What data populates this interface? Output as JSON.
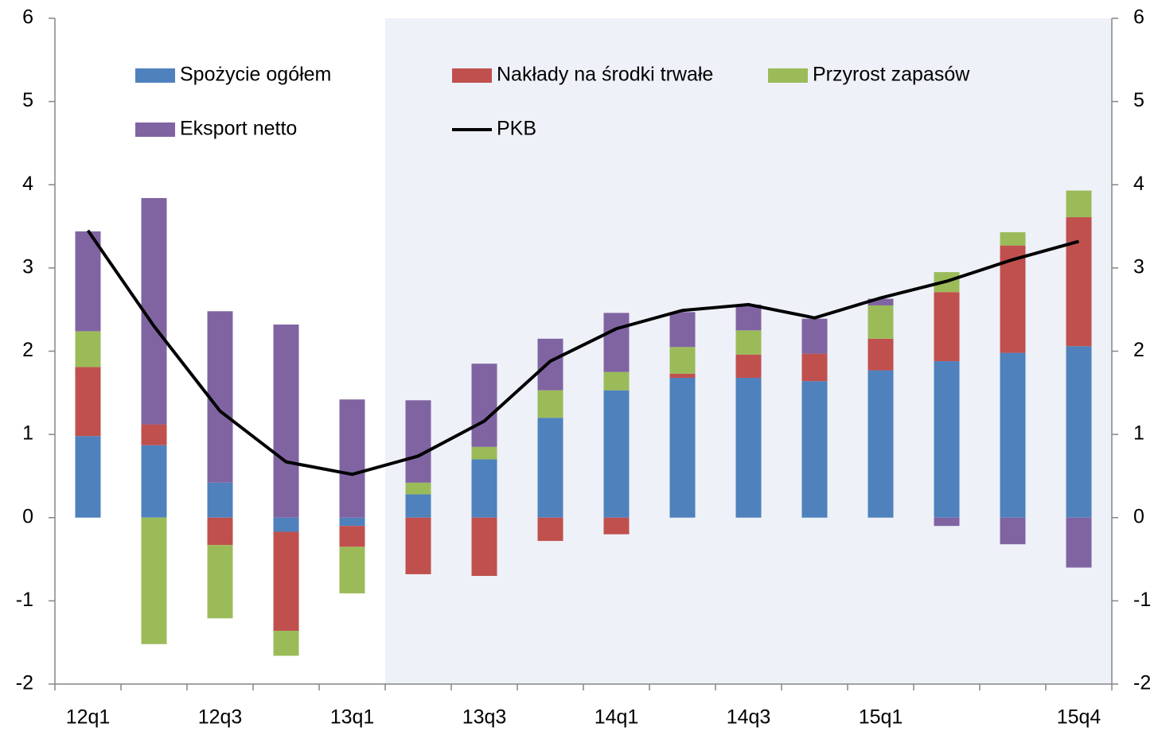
{
  "chart_data": {
    "type": "bar",
    "categories": [
      "12q1",
      null,
      "12q3",
      null,
      "13q1",
      null,
      "13q3",
      null,
      "14q1",
      null,
      "14q3",
      null,
      "15q1",
      null,
      null,
      "15q4"
    ],
    "series": [
      {
        "name": "Spożycie ogółem",
        "color": "#4f81bd",
        "values": [
          0.98,
          0.87,
          0.42,
          -0.17,
          -0.1,
          0.28,
          0.7,
          1.2,
          1.53,
          1.68,
          1.68,
          1.64,
          1.77,
          1.88,
          1.98,
          2.06
        ]
      },
      {
        "name": "Nakłady na środki trwałe",
        "color": "#c0504d",
        "values": [
          0.83,
          0.25,
          -0.33,
          -1.19,
          -0.25,
          -0.68,
          -0.7,
          -0.28,
          -0.2,
          0.05,
          0.28,
          0.33,
          0.38,
          0.83,
          1.29,
          1.55
        ]
      },
      {
        "name": "Przyrost zapasów",
        "color": "#9bbb59",
        "values": [
          0.43,
          -1.52,
          -0.88,
          -0.3,
          -0.56,
          0.14,
          0.15,
          0.33,
          0.22,
          0.32,
          0.29,
          0,
          0.4,
          0.24,
          0.16,
          0.32
        ]
      },
      {
        "name": "Eksport netto",
        "color": "#8064a2",
        "values": [
          1.2,
          2.72,
          2.06,
          2.32,
          1.42,
          0.99,
          1.0,
          0.62,
          0.71,
          0.42,
          0.31,
          0.42,
          0.08,
          -0.1,
          -0.32,
          -0.6
        ]
      },
      {
        "name": "PKB",
        "type": "line",
        "color": "#000000",
        "values": [
          3.45,
          2.3,
          1.28,
          0.67,
          0.52,
          0.74,
          1.16,
          1.88,
          2.27,
          2.49,
          2.56,
          2.4,
          2.64,
          2.84,
          3.1,
          3.32
        ]
      }
    ],
    "ylim": [
      -2,
      6
    ],
    "yticks": [
      -2,
      -1,
      0,
      1,
      2,
      3,
      4,
      5,
      6
    ],
    "y2lim": [
      -2,
      6
    ],
    "y2ticks": [
      -2,
      -1,
      0,
      1,
      2,
      3,
      4,
      5,
      6
    ],
    "shaded_from": 5,
    "shade_color": "#eef1f8"
  }
}
